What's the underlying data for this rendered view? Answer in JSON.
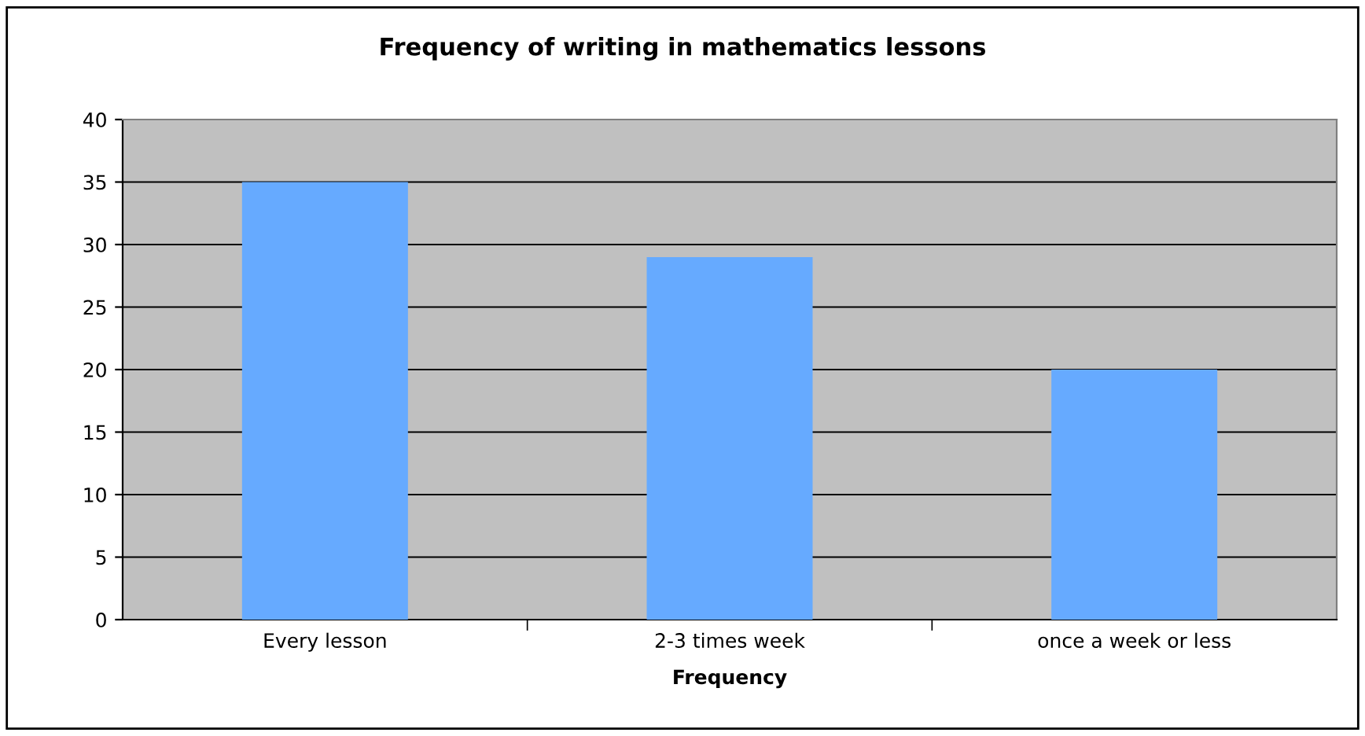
{
  "chart_data": {
    "type": "bar",
    "title": "Frequency of writing in mathematics lessons",
    "xlabel": "Frequency",
    "categories": [
      "Every lesson",
      "2-3 times week",
      "once a week or less"
    ],
    "values": [
      35,
      29,
      20
    ],
    "color": "#66aaff",
    "ylim": [
      0,
      40
    ],
    "yticks": [
      0,
      5,
      10,
      15,
      20,
      25,
      30,
      35,
      40
    ],
    "grid": "y",
    "legend": false
  }
}
